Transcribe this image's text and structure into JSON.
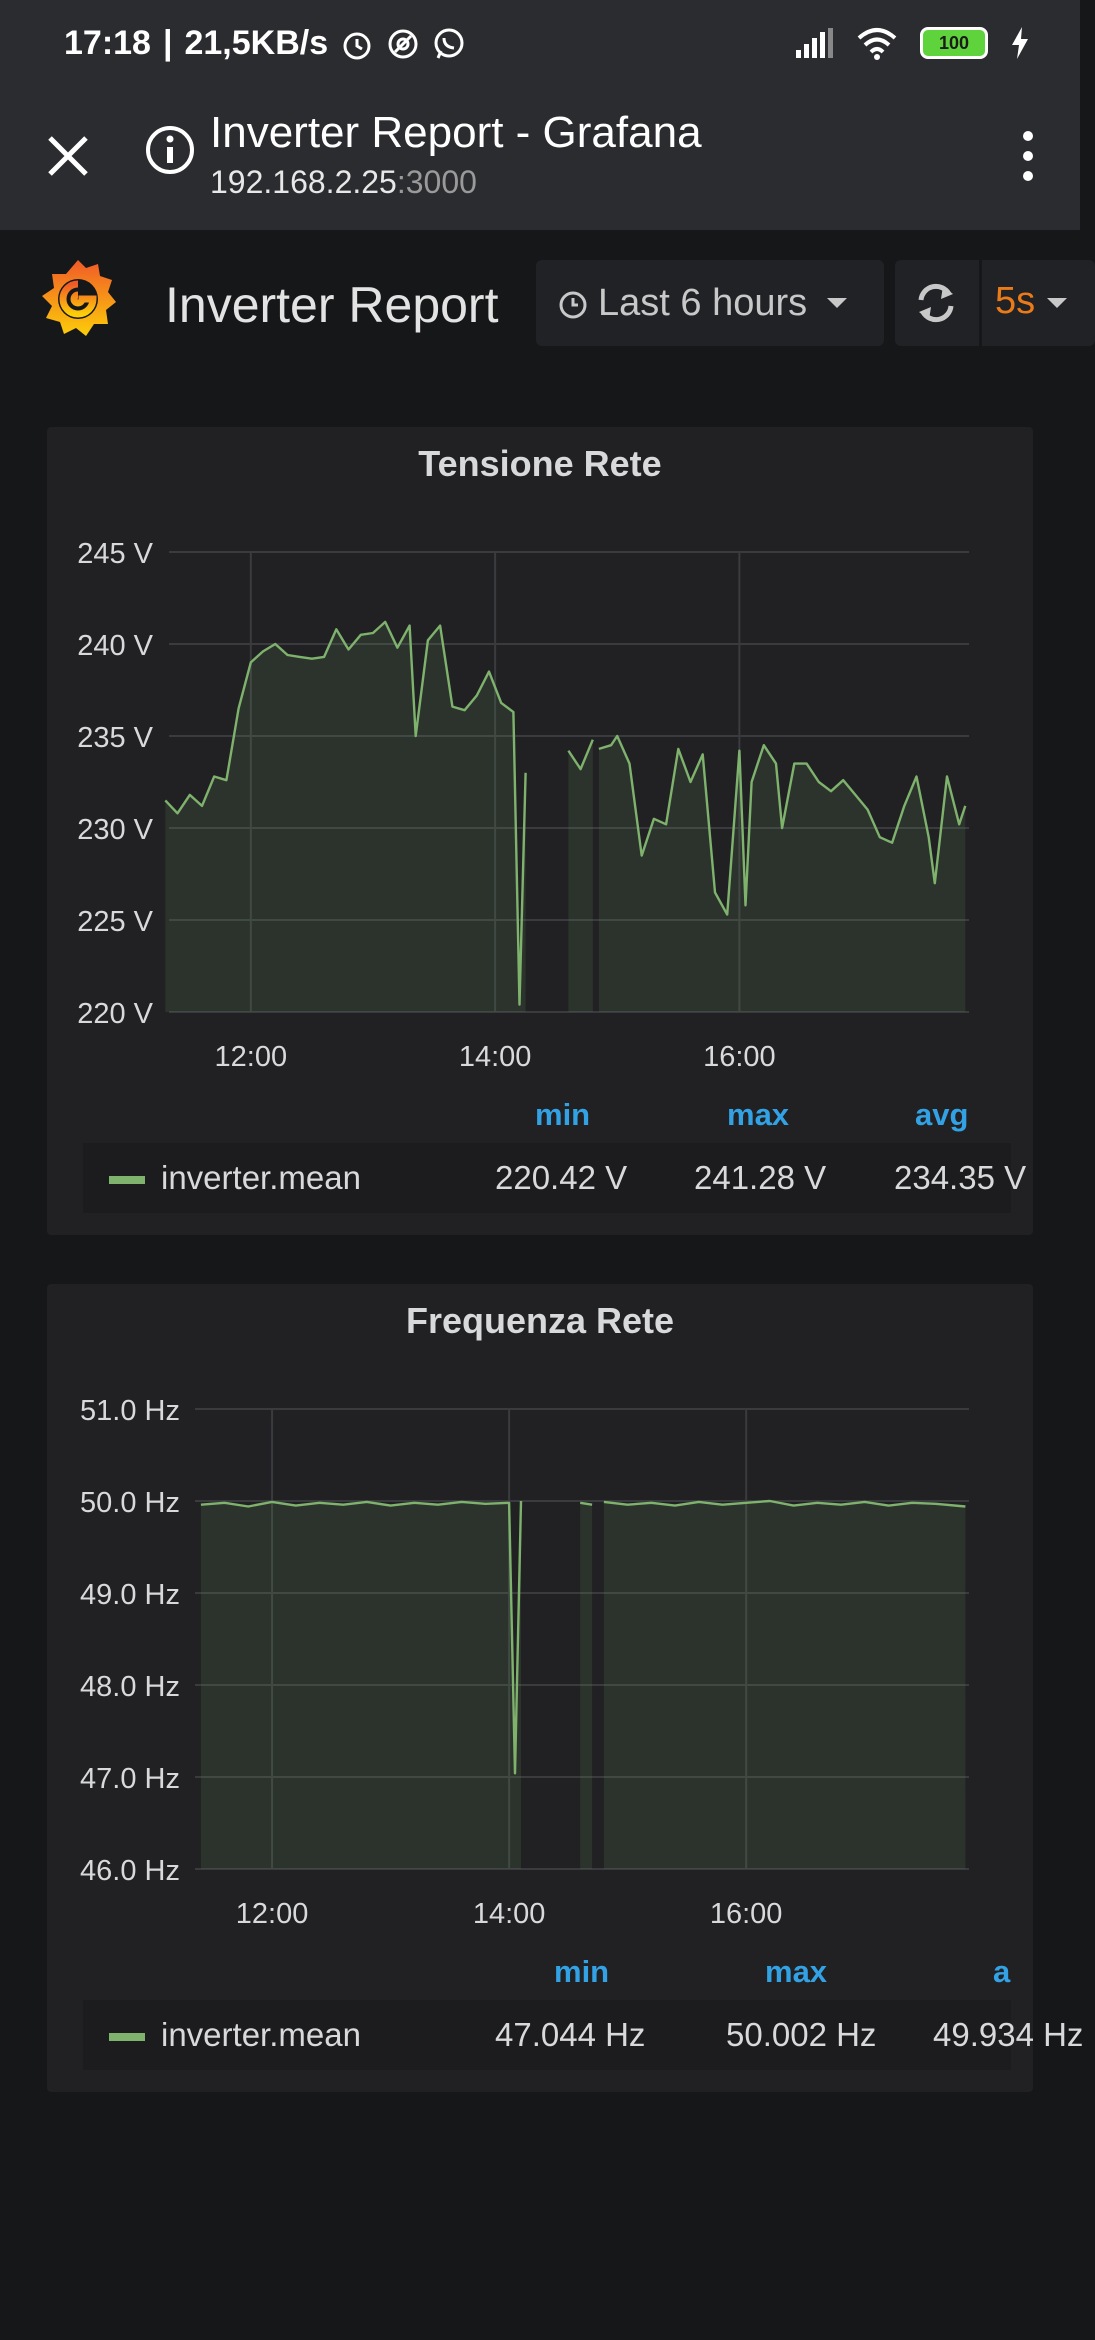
{
  "status_bar": {
    "time": "17:18",
    "speed": "21,5KB/s",
    "battery": "100",
    "icons": [
      "alarm-icon",
      "vpn-icon",
      "whatsapp-icon",
      "signal-icon",
      "wifi-icon",
      "battery-icon",
      "charging-icon"
    ]
  },
  "browser": {
    "page_title": "Inverter Report - Grafana",
    "url_host": "192.168.2.25",
    "url_port": ":3000"
  },
  "dashboard": {
    "title": "Inverter Report",
    "time_range": "Last 6 hours",
    "refresh_interval": "5s",
    "accent_color": "#eb7b18"
  },
  "chart_data": [
    {
      "type": "area",
      "title": "Tensione Rete",
      "x_ticks": [
        "12:00",
        "14:00",
        "16:00"
      ],
      "y_ticks": [
        "245 V",
        "240 V",
        "235 V",
        "230 V",
        "225 V",
        "220 V"
      ],
      "ylim": [
        220,
        245
      ],
      "series": [
        {
          "name": "inverter.mean",
          "color": "#7eb26d",
          "segments": [
            [
              [
                11.3,
                231.5
              ],
              [
                11.4,
                230.8
              ],
              [
                11.5,
                231.8
              ],
              [
                11.6,
                231.2
              ],
              [
                11.7,
                232.8
              ],
              [
                11.8,
                232.6
              ],
              [
                11.9,
                236.5
              ],
              [
                12.0,
                239.0
              ],
              [
                12.1,
                239.6
              ],
              [
                12.2,
                240.0
              ],
              [
                12.3,
                239.4
              ],
              [
                12.4,
                239.3
              ],
              [
                12.5,
                239.2
              ],
              [
                12.6,
                239.3
              ],
              [
                12.7,
                240.8
              ],
              [
                12.8,
                239.7
              ],
              [
                12.9,
                240.5
              ],
              [
                13.0,
                240.6
              ],
              [
                13.1,
                241.2
              ],
              [
                13.2,
                239.8
              ],
              [
                13.3,
                241.0
              ],
              [
                13.35,
                235.0
              ],
              [
                13.45,
                240.2
              ],
              [
                13.55,
                241.0
              ],
              [
                13.65,
                236.6
              ],
              [
                13.75,
                236.4
              ],
              [
                13.85,
                237.2
              ],
              [
                13.95,
                238.5
              ],
              [
                14.05,
                236.8
              ],
              [
                14.15,
                236.3
              ],
              [
                14.2,
                220.4
              ],
              [
                14.25,
                233.0
              ]
            ],
            [
              [
                14.6,
                234.2
              ],
              [
                14.7,
                233.2
              ],
              [
                14.8,
                234.8
              ]
            ],
            [
              [
                14.85,
                234.3
              ],
              [
                14.95,
                234.5
              ],
              [
                15.0,
                235.0
              ],
              [
                15.1,
                233.5
              ],
              [
                15.2,
                228.5
              ],
              [
                15.3,
                230.5
              ],
              [
                15.4,
                230.2
              ],
              [
                15.5,
                234.3
              ],
              [
                15.6,
                232.5
              ],
              [
                15.7,
                234.0
              ],
              [
                15.8,
                226.5
              ],
              [
                15.9,
                225.3
              ],
              [
                16.0,
                234.2
              ],
              [
                16.05,
                225.8
              ],
              [
                16.1,
                232.5
              ],
              [
                16.2,
                234.5
              ],
              [
                16.3,
                233.5
              ],
              [
                16.35,
                230.0
              ],
              [
                16.45,
                233.5
              ],
              [
                16.55,
                233.5
              ],
              [
                16.65,
                232.5
              ],
              [
                16.75,
                232.0
              ],
              [
                16.85,
                232.6
              ],
              [
                16.95,
                231.8
              ],
              [
                17.05,
                231.0
              ],
              [
                17.15,
                229.5
              ],
              [
                17.25,
                229.2
              ],
              [
                17.35,
                231.2
              ],
              [
                17.45,
                232.8
              ],
              [
                17.55,
                229.5
              ],
              [
                17.6,
                227.0
              ],
              [
                17.7,
                232.8
              ],
              [
                17.8,
                230.2
              ],
              [
                17.85,
                231.2
              ]
            ]
          ]
        }
      ],
      "legend": {
        "headers": [
          "min",
          "max",
          "avg"
        ],
        "values": [
          "220.42 V",
          "241.28 V",
          "234.35 V"
        ]
      }
    },
    {
      "type": "area",
      "title": "Frequenza Rete",
      "x_ticks": [
        "12:00",
        "14:00",
        "16:00"
      ],
      "y_ticks": [
        "51.0 Hz",
        "50.0 Hz",
        "49.0 Hz",
        "48.0 Hz",
        "47.0 Hz",
        "46.0 Hz"
      ],
      "ylim": [
        46,
        51
      ],
      "series": [
        {
          "name": "inverter.mean",
          "color": "#7eb26d",
          "segments": [
            [
              [
                11.4,
                49.96
              ],
              [
                11.6,
                49.98
              ],
              [
                11.8,
                49.94
              ],
              [
                12.0,
                49.99
              ],
              [
                12.2,
                49.95
              ],
              [
                12.4,
                49.98
              ],
              [
                12.6,
                49.96
              ],
              [
                12.8,
                49.99
              ],
              [
                13.0,
                49.95
              ],
              [
                13.2,
                49.98
              ],
              [
                13.4,
                49.96
              ],
              [
                13.6,
                49.99
              ],
              [
                13.8,
                49.97
              ],
              [
                14.0,
                49.98
              ],
              [
                14.05,
                47.04
              ],
              [
                14.1,
                50.0
              ]
            ],
            [
              [
                14.6,
                49.98
              ],
              [
                14.7,
                49.96
              ]
            ],
            [
              [
                14.8,
                49.99
              ],
              [
                15.0,
                49.96
              ],
              [
                15.2,
                49.98
              ],
              [
                15.4,
                49.95
              ],
              [
                15.6,
                49.99
              ],
              [
                15.8,
                49.96
              ],
              [
                16.0,
                49.98
              ],
              [
                16.2,
                50.0
              ],
              [
                16.4,
                49.95
              ],
              [
                16.6,
                49.98
              ],
              [
                16.8,
                49.96
              ],
              [
                17.0,
                49.99
              ],
              [
                17.2,
                49.95
              ],
              [
                17.4,
                49.98
              ],
              [
                17.6,
                49.97
              ],
              [
                17.85,
                49.94
              ]
            ]
          ]
        }
      ],
      "legend": {
        "headers": [
          "min",
          "max",
          "a"
        ],
        "values": [
          "47.044 Hz",
          "50.002 Hz",
          "49.934 Hz"
        ]
      }
    }
  ]
}
